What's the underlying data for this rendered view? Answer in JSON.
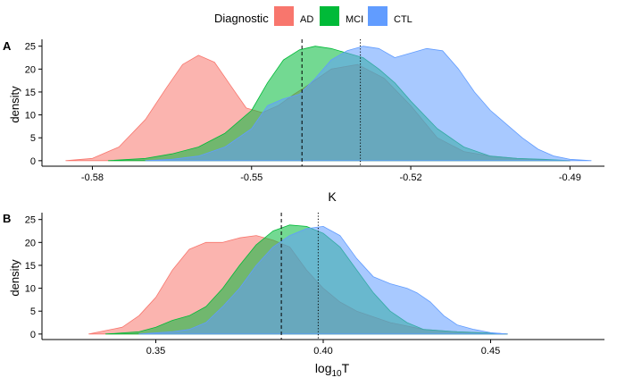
{
  "legend": {
    "title": "Diagnostic",
    "items": [
      {
        "label": "AD",
        "color": "#F8766D"
      },
      {
        "label": "MCI",
        "color": "#00BA38"
      },
      {
        "label": "CTL",
        "color": "#619CFF"
      }
    ]
  },
  "chart_data": [
    {
      "panel_label": "A",
      "type": "area",
      "xlabel": "K",
      "ylabel": "density",
      "xlim": [
        -0.5895,
        -0.4835
      ],
      "ylim": [
        -1.2,
        26.5
      ],
      "xticks": [
        -0.58,
        -0.55,
        -0.52,
        -0.49
      ],
      "xtick_labels": [
        "-0.58",
        "-0.55",
        "-0.52",
        "-0.49"
      ],
      "yticks": [
        0,
        5,
        10,
        15,
        20,
        25
      ],
      "ytick_labels": [
        "0",
        "5",
        "10",
        "15",
        "20",
        "25"
      ],
      "vlines": [
        {
          "x": -0.5405,
          "style": "dashed"
        },
        {
          "x": -0.5295,
          "style": "dotted"
        }
      ],
      "series": [
        {
          "name": "AD",
          "color": "#F8766D",
          "x": [
            -0.585,
            -0.58,
            -0.575,
            -0.57,
            -0.566,
            -0.563,
            -0.56,
            -0.557,
            -0.554,
            -0.551,
            -0.548,
            -0.545,
            -0.542,
            -0.54,
            -0.535,
            -0.53,
            -0.525,
            -0.52,
            -0.515,
            -0.51,
            -0.505,
            -0.5,
            -0.495,
            -0.49
          ],
          "y": [
            0,
            0.5,
            3,
            9,
            16,
            21,
            23,
            21.5,
            16.5,
            11.5,
            10.5,
            12,
            14.5,
            16,
            20,
            21,
            18,
            12,
            5,
            2,
            1,
            0.5,
            0.2,
            0
          ]
        },
        {
          "name": "MCI",
          "color": "#00BA38",
          "x": [
            -0.577,
            -0.57,
            -0.565,
            -0.56,
            -0.555,
            -0.55,
            -0.547,
            -0.544,
            -0.541,
            -0.538,
            -0.535,
            -0.532,
            -0.529,
            -0.526,
            -0.523,
            -0.52,
            -0.515,
            -0.51,
            -0.505,
            -0.5,
            -0.495,
            -0.49
          ],
          "y": [
            0,
            0.5,
            1.5,
            3,
            6,
            11,
            17,
            22,
            24.2,
            25,
            24.5,
            23.5,
            22.5,
            20,
            17,
            13,
            7,
            3,
            1,
            0.5,
            0.3,
            0
          ]
        },
        {
          "name": "CTL",
          "color": "#619CFF",
          "x": [
            -0.57,
            -0.565,
            -0.56,
            -0.555,
            -0.55,
            -0.547,
            -0.544,
            -0.541,
            -0.538,
            -0.535,
            -0.532,
            -0.529,
            -0.526,
            -0.523,
            -0.52,
            -0.517,
            -0.514,
            -0.511,
            -0.508,
            -0.505,
            -0.502,
            -0.499,
            -0.496,
            -0.493,
            -0.49,
            -0.486
          ],
          "y": [
            0,
            0.3,
            1,
            3,
            7,
            12,
            13.5,
            14.5,
            18,
            22,
            24,
            25,
            24.5,
            22.5,
            23.5,
            24.5,
            24,
            20,
            15,
            11,
            8,
            5,
            2.5,
            1,
            0.3,
            0
          ]
        }
      ]
    },
    {
      "panel_label": "B",
      "type": "area",
      "xlabel": "log10T",
      "ylabel": "density",
      "xlim": [
        0.316,
        0.484
      ],
      "ylim": [
        -1.2,
        26.5
      ],
      "xticks": [
        0.35,
        0.4,
        0.45
      ],
      "xtick_labels": [
        "0.35",
        "0.40",
        "0.45"
      ],
      "yticks": [
        0,
        5,
        10,
        15,
        20,
        25
      ],
      "ytick_labels": [
        "0",
        "5",
        "10",
        "15",
        "20",
        "25"
      ],
      "vlines": [
        {
          "x": 0.3875,
          "style": "dashed"
        },
        {
          "x": 0.3985,
          "style": "dotted"
        }
      ],
      "series": [
        {
          "name": "AD",
          "color": "#F8766D",
          "x": [
            0.33,
            0.34,
            0.345,
            0.35,
            0.355,
            0.36,
            0.365,
            0.37,
            0.375,
            0.38,
            0.385,
            0.39,
            0.395,
            0.4,
            0.405,
            0.41,
            0.42,
            0.43,
            0.44,
            0.45,
            0.455
          ],
          "y": [
            0,
            1.5,
            4,
            8,
            14,
            18.5,
            20,
            20,
            21,
            21.5,
            20.5,
            19,
            14,
            10,
            7,
            5,
            2.5,
            1,
            0.5,
            0.2,
            0
          ]
        },
        {
          "name": "MCI",
          "color": "#00BA38",
          "x": [
            0.335,
            0.345,
            0.35,
            0.355,
            0.36,
            0.365,
            0.37,
            0.375,
            0.38,
            0.385,
            0.39,
            0.395,
            0.4,
            0.405,
            0.41,
            0.415,
            0.42,
            0.425,
            0.43,
            0.44,
            0.45,
            0.455
          ],
          "y": [
            0,
            0.5,
            1.5,
            3,
            4,
            6,
            10,
            15,
            19.5,
            22.5,
            23.8,
            23.5,
            22,
            19,
            14,
            9,
            5,
            2.5,
            1,
            0.5,
            0.2,
            0
          ]
        },
        {
          "name": "CTL",
          "color": "#619CFF",
          "x": [
            0.345,
            0.355,
            0.36,
            0.365,
            0.37,
            0.375,
            0.38,
            0.385,
            0.39,
            0.395,
            0.4,
            0.405,
            0.41,
            0.415,
            0.42,
            0.425,
            0.428,
            0.432,
            0.436,
            0.44,
            0.445,
            0.45,
            0.455
          ],
          "y": [
            0,
            0.5,
            1,
            2.5,
            6,
            10,
            15,
            19,
            21.5,
            23,
            23.5,
            21.5,
            16.5,
            12.5,
            11,
            10,
            9,
            7,
            4,
            2,
            1,
            0.3,
            0
          ]
        }
      ]
    }
  ]
}
